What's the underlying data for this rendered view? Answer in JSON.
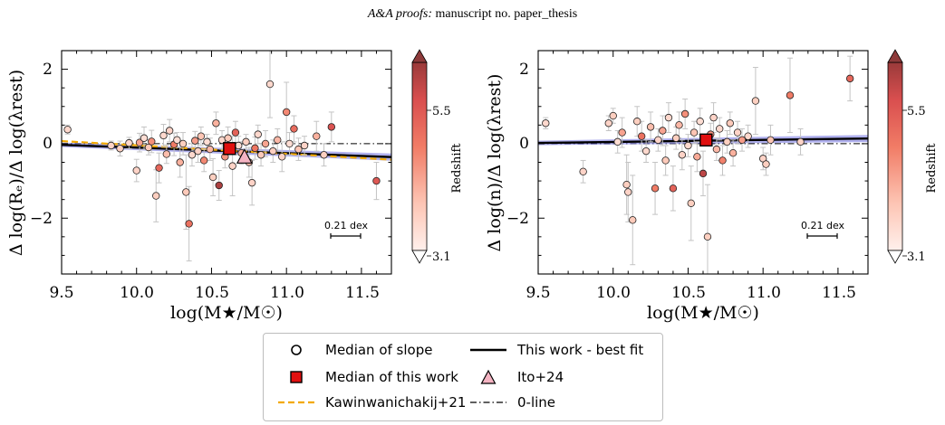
{
  "header": {
    "italic": "A&A proofs:",
    "rest": " manuscript no. paper_thesis"
  },
  "colors": {
    "best_fit": "#000000",
    "best_fit_band": "#6f6fe0",
    "median_work": "#e10f0f",
    "ito": "#f4b3c2",
    "kawinwanichakij": "#f2a900",
    "errorbar": "#c4c4c4"
  },
  "chart_data": [
    {
      "type": "scatter",
      "xlabel": "log(M★/M☉)",
      "ylabel": "Δ log(Rₑ)/Δ log(λrest)",
      "xlim": [
        9.5,
        11.7
      ],
      "ylim": [
        -3.5,
        2.5
      ],
      "xticks": [
        "9.5",
        "10.0",
        "10.5",
        "11.0",
        "11.5"
      ],
      "yticks": [
        "−2",
        "0",
        "2"
      ],
      "scale_bar_label": "0.21 dex",
      "colorbar": {
        "label": "Redshift",
        "ticks": [
          "3.1",
          "5.5"
        ],
        "range": [
          2.8,
          6.4
        ]
      },
      "best_fit": {
        "x": [
          9.5,
          11.7
        ],
        "y": [
          -0.03,
          -0.36
        ]
      },
      "kawinwanichakij": {
        "x": [
          9.5,
          11.7
        ],
        "y": [
          0.07,
          -0.43
        ]
      },
      "zero_line": 0,
      "median_work": {
        "x": 10.62,
        "y": -0.13
      },
      "ito": {
        "x": 10.72,
        "y": -0.35
      },
      "points": [
        {
          "x": 9.54,
          "y": 0.38,
          "z": 3.3,
          "e": 0.12
        },
        {
          "x": 9.83,
          "y": -0.05,
          "z": 3.4,
          "e": 0.12
        },
        {
          "x": 9.89,
          "y": -0.13,
          "z": 3.5,
          "e": 0.2
        },
        {
          "x": 9.95,
          "y": 0.02,
          "z": 3.3,
          "e": 0.15
        },
        {
          "x": 10.0,
          "y": -0.72,
          "z": 3.4,
          "e": 0.3
        },
        {
          "x": 10.02,
          "y": 0.03,
          "z": 4.2,
          "e": 0.25
        },
        {
          "x": 10.05,
          "y": 0.15,
          "z": 3.2,
          "e": 0.3
        },
        {
          "x": 10.08,
          "y": -0.1,
          "z": 3.6,
          "e": 0.2
        },
        {
          "x": 10.1,
          "y": 0.06,
          "z": 4.5,
          "e": 0.3
        },
        {
          "x": 10.13,
          "y": -1.4,
          "z": 3.5,
          "e": 0.7
        },
        {
          "x": 10.15,
          "y": -0.65,
          "z": 5.2,
          "e": 0.4
        },
        {
          "x": 10.18,
          "y": 0.22,
          "z": 3.3,
          "e": 0.3
        },
        {
          "x": 10.2,
          "y": -0.28,
          "z": 3.8,
          "e": 0.25
        },
        {
          "x": 10.22,
          "y": 0.35,
          "z": 3.4,
          "e": 0.3
        },
        {
          "x": 10.25,
          "y": -0.02,
          "z": 4.8,
          "e": 0.3
        },
        {
          "x": 10.27,
          "y": 0.1,
          "z": 3.2,
          "e": 0.2
        },
        {
          "x": 10.29,
          "y": -0.5,
          "z": 4.0,
          "e": 0.4
        },
        {
          "x": 10.31,
          "y": 0.0,
          "z": 3.5,
          "e": 0.3
        },
        {
          "x": 10.33,
          "y": -1.3,
          "z": 3.6,
          "e": 1.0
        },
        {
          "x": 10.35,
          "y": -2.15,
          "z": 5.0,
          "e": 1.0
        },
        {
          "x": 10.37,
          "y": -0.3,
          "z": 3.3,
          "e": 0.3
        },
        {
          "x": 10.39,
          "y": 0.08,
          "z": 4.3,
          "e": 0.25
        },
        {
          "x": 10.41,
          "y": -0.2,
          "z": 3.4,
          "e": 0.3
        },
        {
          "x": 10.43,
          "y": 0.2,
          "z": 3.7,
          "e": 0.25
        },
        {
          "x": 10.45,
          "y": -0.45,
          "z": 4.6,
          "e": 0.3
        },
        {
          "x": 10.47,
          "y": 0.05,
          "z": 3.2,
          "e": 0.2
        },
        {
          "x": 10.49,
          "y": -0.15,
          "z": 3.9,
          "e": 0.3
        },
        {
          "x": 10.51,
          "y": -0.9,
          "z": 3.5,
          "e": 0.5
        },
        {
          "x": 10.53,
          "y": 0.55,
          "z": 4.0,
          "e": 0.3
        },
        {
          "x": 10.55,
          "y": -1.12,
          "z": 6.2,
          "e": 0.4
        },
        {
          "x": 10.57,
          "y": 0.1,
          "z": 3.3,
          "e": 0.25
        },
        {
          "x": 10.59,
          "y": -0.35,
          "z": 4.4,
          "e": 0.3
        },
        {
          "x": 10.61,
          "y": 0.15,
          "z": 3.6,
          "e": 0.3
        },
        {
          "x": 10.64,
          "y": -0.6,
          "z": 3.4,
          "e": 0.8
        },
        {
          "x": 10.66,
          "y": 0.3,
          "z": 5.3,
          "e": 0.3
        },
        {
          "x": 10.68,
          "y": -0.05,
          "z": 3.2,
          "e": 0.25
        },
        {
          "x": 10.7,
          "y": -0.25,
          "z": 4.1,
          "e": 0.3
        },
        {
          "x": 10.73,
          "y": 0.05,
          "z": 3.5,
          "e": 0.2
        },
        {
          "x": 10.75,
          "y": -0.5,
          "z": 3.8,
          "e": 0.4
        },
        {
          "x": 10.77,
          "y": -1.05,
          "z": 3.4,
          "e": 0.6
        },
        {
          "x": 10.79,
          "y": -0.12,
          "z": 4.9,
          "e": 0.3
        },
        {
          "x": 10.81,
          "y": 0.25,
          "z": 3.3,
          "e": 0.25
        },
        {
          "x": 10.83,
          "y": -0.3,
          "z": 3.6,
          "e": 0.3
        },
        {
          "x": 10.86,
          "y": 0.0,
          "z": 4.2,
          "e": 0.35
        },
        {
          "x": 10.89,
          "y": 1.6,
          "z": 3.3,
          "e": 0.9
        },
        {
          "x": 10.91,
          "y": -0.2,
          "z": 3.5,
          "e": 0.3
        },
        {
          "x": 10.94,
          "y": 0.1,
          "z": 3.9,
          "e": 0.3
        },
        {
          "x": 10.97,
          "y": -0.35,
          "z": 3.4,
          "e": 0.4
        },
        {
          "x": 11.0,
          "y": 0.85,
          "z": 4.6,
          "e": 0.8
        },
        {
          "x": 11.02,
          "y": 0.0,
          "z": 3.2,
          "e": 0.3
        },
        {
          "x": 11.05,
          "y": 0.4,
          "z": 5.1,
          "e": 0.35
        },
        {
          "x": 11.08,
          "y": -0.15,
          "z": 3.7,
          "e": 0.3
        },
        {
          "x": 11.12,
          "y": -0.05,
          "z": 3.4,
          "e": 0.25
        },
        {
          "x": 11.2,
          "y": 0.2,
          "z": 4.0,
          "e": 0.4
        },
        {
          "x": 11.25,
          "y": -0.3,
          "z": 3.5,
          "e": 0.3
        },
        {
          "x": 11.3,
          "y": 0.45,
          "z": 5.6,
          "e": 0.4
        },
        {
          "x": 11.6,
          "y": -1.0,
          "z": 5.5,
          "e": 0.5
        }
      ]
    },
    {
      "type": "scatter",
      "xlabel": "log(M★/M☉)",
      "ylabel": "Δ log(n)/Δ log(λrest)",
      "xlim": [
        9.5,
        11.7
      ],
      "ylim": [
        -3.5,
        2.5
      ],
      "xticks": [
        "9.5",
        "10.0",
        "10.5",
        "11.0",
        "11.5"
      ],
      "yticks": [
        "−2",
        "0",
        "2"
      ],
      "scale_bar_label": "0.21 dex",
      "colorbar": {
        "label": "Redshift",
        "ticks": [
          "3.1",
          "5.5"
        ],
        "range": [
          2.8,
          6.4
        ]
      },
      "best_fit": {
        "x": [
          9.5,
          11.7
        ],
        "y": [
          0.02,
          0.14
        ]
      },
      "zero_line": 0,
      "median_work": {
        "x": 10.62,
        "y": 0.1
      },
      "points": [
        {
          "x": 9.55,
          "y": 0.55,
          "z": 3.3,
          "e": 0.15
        },
        {
          "x": 9.8,
          "y": -0.75,
          "z": 3.4,
          "e": 0.3
        },
        {
          "x": 9.97,
          "y": 0.55,
          "z": 3.4,
          "e": 0.2
        },
        {
          "x": 10.0,
          "y": 0.75,
          "z": 3.5,
          "e": 0.2
        },
        {
          "x": 10.03,
          "y": 0.05,
          "z": 3.2,
          "e": 0.3
        },
        {
          "x": 10.06,
          "y": 0.3,
          "z": 4.2,
          "e": 0.4
        },
        {
          "x": 10.09,
          "y": -1.1,
          "z": 3.5,
          "e": 0.8
        },
        {
          "x": 10.1,
          "y": -1.3,
          "z": 3.4,
          "e": 0.8
        },
        {
          "x": 10.13,
          "y": -2.05,
          "z": 3.6,
          "e": 1.2
        },
        {
          "x": 10.16,
          "y": 0.6,
          "z": 3.5,
          "e": 0.4
        },
        {
          "x": 10.19,
          "y": 0.2,
          "z": 5.0,
          "e": 0.4
        },
        {
          "x": 10.22,
          "y": -0.2,
          "z": 3.3,
          "e": 0.3
        },
        {
          "x": 10.25,
          "y": 0.45,
          "z": 3.8,
          "e": 0.4
        },
        {
          "x": 10.28,
          "y": -1.2,
          "z": 4.8,
          "e": 0.7
        },
        {
          "x": 10.3,
          "y": 0.1,
          "z": 3.4,
          "e": 0.3
        },
        {
          "x": 10.33,
          "y": 0.35,
          "z": 4.2,
          "e": 0.4
        },
        {
          "x": 10.35,
          "y": -0.45,
          "z": 3.6,
          "e": 0.4
        },
        {
          "x": 10.37,
          "y": 0.7,
          "z": 3.3,
          "e": 0.4
        },
        {
          "x": 10.4,
          "y": -1.2,
          "z": 5.3,
          "e": 0.6
        },
        {
          "x": 10.42,
          "y": 0.15,
          "z": 3.5,
          "e": 0.3
        },
        {
          "x": 10.44,
          "y": 0.5,
          "z": 3.9,
          "e": 0.35
        },
        {
          "x": 10.46,
          "y": -0.3,
          "z": 3.4,
          "e": 0.4
        },
        {
          "x": 10.48,
          "y": 0.8,
          "z": 4.5,
          "e": 0.4
        },
        {
          "x": 10.5,
          "y": -0.05,
          "z": 3.3,
          "e": 0.3
        },
        {
          "x": 10.52,
          "y": -1.6,
          "z": 3.5,
          "e": 1.0
        },
        {
          "x": 10.54,
          "y": 0.3,
          "z": 3.7,
          "e": 0.3
        },
        {
          "x": 10.56,
          "y": -0.35,
          "z": 4.1,
          "e": 0.4
        },
        {
          "x": 10.58,
          "y": 0.6,
          "z": 3.2,
          "e": 0.35
        },
        {
          "x": 10.6,
          "y": -0.8,
          "z": 6.0,
          "e": 0.6
        },
        {
          "x": 10.63,
          "y": -2.5,
          "z": 3.5,
          "e": 1.4
        },
        {
          "x": 10.65,
          "y": 0.25,
          "z": 4.4,
          "e": 0.3
        },
        {
          "x": 10.67,
          "y": 0.7,
          "z": 3.4,
          "e": 0.4
        },
        {
          "x": 10.69,
          "y": -0.15,
          "z": 3.9,
          "e": 0.3
        },
        {
          "x": 10.71,
          "y": 0.4,
          "z": 3.3,
          "e": 0.3
        },
        {
          "x": 10.73,
          "y": -0.45,
          "z": 4.7,
          "e": 0.4
        },
        {
          "x": 10.76,
          "y": 0.05,
          "z": 3.5,
          "e": 0.3
        },
        {
          "x": 10.78,
          "y": 0.55,
          "z": 3.6,
          "e": 0.3
        },
        {
          "x": 10.8,
          "y": -0.25,
          "z": 4.0,
          "e": 0.35
        },
        {
          "x": 10.83,
          "y": 0.3,
          "z": 3.4,
          "e": 0.3
        },
        {
          "x": 10.86,
          "y": 0.1,
          "z": 4.3,
          "e": 0.3
        },
        {
          "x": 10.9,
          "y": 0.2,
          "z": 3.3,
          "e": 0.3
        },
        {
          "x": 10.95,
          "y": 1.15,
          "z": 3.5,
          "e": 0.9
        },
        {
          "x": 11.0,
          "y": -0.4,
          "z": 3.4,
          "e": 0.3
        },
        {
          "x": 11.02,
          "y": -0.55,
          "z": 3.5,
          "e": 0.3
        },
        {
          "x": 11.05,
          "y": 0.1,
          "z": 3.7,
          "e": 0.4
        },
        {
          "x": 11.18,
          "y": 1.3,
          "z": 4.8,
          "e": 1.0
        },
        {
          "x": 11.25,
          "y": 0.05,
          "z": 3.4,
          "e": 0.35
        },
        {
          "x": 11.58,
          "y": 1.75,
          "z": 5.2,
          "e": 0.6
        }
      ]
    }
  ],
  "legend": {
    "items": [
      {
        "key": "median_slope",
        "label": "Median of slope"
      },
      {
        "key": "best_fit",
        "label": "This work - best fit"
      },
      {
        "key": "median_work",
        "label": "Median of this work"
      },
      {
        "key": "ito",
        "label": "Ito+24"
      },
      {
        "key": "kawinwanichakij",
        "label": "Kawinwanichakij+21"
      },
      {
        "key": "zero_line",
        "label": "0-line"
      }
    ]
  }
}
